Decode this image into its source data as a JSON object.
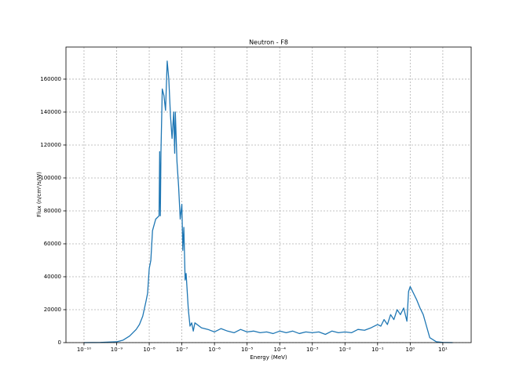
{
  "chart_data": {
    "type": "line",
    "title": "Neutron - F8",
    "x_label": "Energy (MeV)",
    "y_label": "Flux (n/cm²/s/W)",
    "x_scale": "log",
    "grid": true,
    "xlim": [
      2.8e-11,
      74
    ],
    "ylim": [
      0,
      179500
    ],
    "xticks": [
      {
        "value": 1e-10,
        "label": "10⁻¹⁰"
      },
      {
        "value": 1e-09,
        "label": "10⁻⁹"
      },
      {
        "value": 1e-08,
        "label": "10⁻⁸"
      },
      {
        "value": 1e-07,
        "label": "10⁻⁷"
      },
      {
        "value": 1e-06,
        "label": "10⁻⁶"
      },
      {
        "value": 1e-05,
        "label": "10⁻⁵"
      },
      {
        "value": 0.0001,
        "label": "10⁻⁴"
      },
      {
        "value": 0.001,
        "label": "10⁻³"
      },
      {
        "value": 0.01,
        "label": "10⁻²"
      },
      {
        "value": 0.1,
        "label": "10⁻¹"
      },
      {
        "value": 1,
        "label": "10⁰"
      },
      {
        "value": 10,
        "label": "10¹"
      }
    ],
    "yticks": [
      0,
      20000,
      40000,
      60000,
      80000,
      100000,
      120000,
      140000,
      160000
    ],
    "x": [
      1e-10,
      3.16e-10,
      1e-09,
      1.58e-09,
      2.51e-09,
      3.98e-09,
      5.01e-09,
      6.31e-09,
      7.94e-09,
      8.91e-09,
      1e-08,
      1.12e-08,
      1.26e-08,
      1.58e-08,
      2e-08,
      2.09e-08,
      2.19e-08,
      2.29e-08,
      2.51e-08,
      2.82e-08,
      3.16e-08,
      3.55e-08,
      3.98e-08,
      4.47e-08,
      5.01e-08,
      5.62e-08,
      6.03e-08,
      6.31e-08,
      7.08e-08,
      7.94e-08,
      8.91e-08,
      1e-07,
      1.07e-07,
      1.15e-07,
      1.26e-07,
      1.35e-07,
      1.58e-07,
      1.78e-07,
      2e-07,
      2.24e-07,
      2.51e-07,
      3.98e-07,
      6.31e-07,
      1e-06,
      1.58e-06,
      2.51e-06,
      3.98e-06,
      6.31e-06,
      1e-05,
      1.58e-05,
      2.51e-05,
      3.98e-05,
      6.31e-05,
      0.0001,
      0.000158,
      0.000251,
      0.000398,
      0.000631,
      0.001,
      0.00158,
      0.00251,
      0.00398,
      0.00631,
      0.01,
      0.0158,
      0.0251,
      0.0398,
      0.0631,
      0.1,
      0.126,
      0.158,
      0.2,
      0.251,
      0.316,
      0.398,
      0.501,
      0.631,
      0.794,
      0.891,
      1,
      1.26,
      1.58,
      2.0,
      2.51,
      3.16,
      3.98,
      6.31,
      10,
      20
    ],
    "series": [
      {
        "color": "#1f77b4",
        "values": [
          0,
          100,
          500,
          1500,
          4000,
          8000,
          11000,
          16000,
          25000,
          30000,
          45000,
          50000,
          68000,
          75000,
          77000,
          116000,
          77000,
          116000,
          154000,
          150000,
          141000,
          171000,
          160000,
          138000,
          124000,
          140000,
          115000,
          140000,
          110000,
          95000,
          75000,
          84000,
          56000,
          70000,
          38000,
          42000,
          20000,
          10000,
          12000,
          7000,
          12000,
          9000,
          8000,
          6500,
          8500,
          7000,
          6000,
          8000,
          6500,
          7000,
          6000,
          6500,
          5500,
          7000,
          6000,
          7000,
          5500,
          6500,
          6000,
          6500,
          5000,
          7000,
          6000,
          6500,
          6000,
          8000,
          7500,
          9000,
          11000,
          10000,
          14000,
          11000,
          17000,
          14000,
          20000,
          17000,
          21000,
          13000,
          31000,
          34000,
          30000,
          26000,
          21000,
          17000,
          10000,
          3000,
          500,
          100,
          0
        ]
      }
    ]
  }
}
